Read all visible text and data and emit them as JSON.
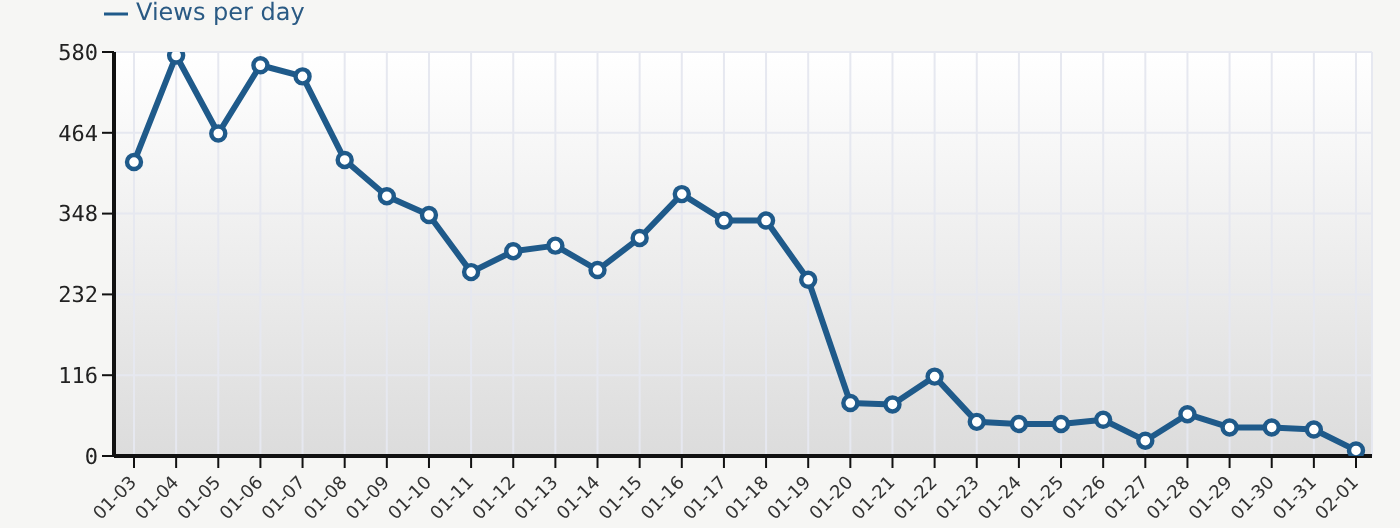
{
  "chart_data": {
    "type": "line",
    "categories": [
      "01-03",
      "01-04",
      "01-05",
      "01-06",
      "01-07",
      "01-08",
      "01-09",
      "01-10",
      "01-11",
      "01-12",
      "01-13",
      "01-14",
      "01-15",
      "01-16",
      "01-17",
      "01-18",
      "01-19",
      "01-20",
      "01-21",
      "01-22",
      "01-23",
      "01-24",
      "01-25",
      "01-26",
      "01-27",
      "01-28",
      "01-29",
      "01-30",
      "01-31",
      "02-01"
    ],
    "series": [
      {
        "name": "Views per day",
        "color": "#1f5a8a",
        "values": [
          422,
          575,
          463,
          561,
          545,
          425,
          373,
          346,
          264,
          294,
          302,
          267,
          313,
          376,
          338,
          338,
          253,
          76,
          74,
          114,
          49,
          46,
          46,
          52,
          22,
          60,
          41,
          41,
          38,
          8
        ]
      }
    ],
    "ylim": [
      0,
      580
    ],
    "yticks": [
      0,
      116,
      232,
      348,
      464,
      580
    ],
    "grid": true,
    "legend": "top left",
    "marker": "circle",
    "line_style": "solid"
  }
}
